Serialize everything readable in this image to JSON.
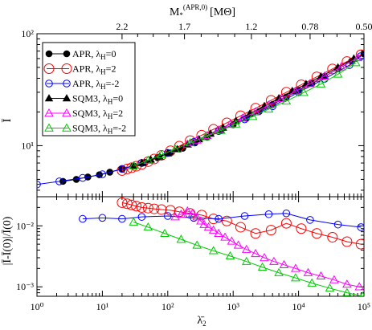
{
  "chart_data": [
    {
      "panel": "top",
      "type": "line",
      "scale": "log-log",
      "ylabel": "Ī",
      "xlim": [
        1,
        100000
      ],
      "ylim": [
        3.5,
        100
      ],
      "top_axis": {
        "label": "M*(APR,0) [MΘ]",
        "label_main": "M",
        "label_sub": "*",
        "label_sup": "(APR,0)",
        "label_unit": "[MΘ]",
        "tick_labels": [
          "2.2",
          "1.7",
          "1.2",
          "0.78",
          "0.50"
        ],
        "tick_x": [
          20,
          180,
          1900,
          15000,
          100000
        ]
      },
      "y_tick_labels": [
        "10¹",
        "10²"
      ],
      "y_ticks": [
        10,
        100
      ],
      "legend_position": "upper-left",
      "series": [
        {
          "name": "APR, λH=0",
          "label_main": "APR, λ",
          "label_sub": "H",
          "label_tail": "=0",
          "color": "#000000",
          "marker": "circle",
          "filled": true,
          "x": [
            2.5,
            4,
            6,
            9,
            13,
            20,
            30,
            45,
            70,
            110,
            170,
            260,
            400,
            650,
            1000,
            1600,
            2500,
            4000,
            6500,
            10000,
            16000,
            25000,
            40000,
            65000,
            100000
          ],
          "y": [
            4.8,
            5.0,
            5.25,
            5.5,
            5.8,
            6.2,
            6.6,
            7.1,
            7.8,
            8.6,
            9.5,
            10.6,
            11.9,
            13.6,
            15.4,
            17.6,
            20.2,
            23.3,
            27.2,
            31.2,
            36.0,
            41.5,
            48.5,
            57.0,
            66.0
          ]
        },
        {
          "name": "APR, λH=2",
          "label_main": "APR, λ",
          "label_sub": "H",
          "label_tail": "=2",
          "color": "#ff0000",
          "marker": "circle",
          "filled": false,
          "x": [
            20,
            24,
            28,
            33,
            40,
            50,
            62,
            80,
            110,
            150,
            220,
            330,
            500,
            800,
            1300,
            2200,
            3800,
            6500,
            11000,
            19000,
            33000,
            55000,
            90000
          ],
          "y": [
            6.0,
            6.2,
            6.35,
            6.55,
            6.8,
            7.2,
            7.6,
            8.2,
            9.0,
            9.9,
            11.1,
            12.4,
            14.0,
            16.0,
            18.5,
            21.6,
            25.4,
            30.0,
            35.0,
            41.2,
            48.5,
            56.5,
            65.0
          ]
        },
        {
          "name": "APR, λH=-2",
          "label_main": "APR, λ",
          "label_sub": "H",
          "label_tail": "=-2",
          "color": "#0000ff",
          "marker": "circle",
          "filled": false,
          "x": [
            1,
            2.2,
            5,
            10,
            20,
            40,
            100,
            250,
            600,
            1500,
            4000,
            10000,
            25000,
            60000,
            90000
          ],
          "y": [
            4.5,
            4.8,
            5.15,
            5.55,
            6.2,
            7.0,
            8.6,
            10.8,
            13.5,
            17.2,
            22.5,
            30.0,
            39.5,
            52.5,
            63.0
          ]
        },
        {
          "name": "SQM3, λH=0",
          "label_main": "SQM3, λ",
          "label_sub": "H",
          "label_tail": "=0",
          "color": "#000000",
          "marker": "triangle",
          "filled": true,
          "x": [
            30,
            40,
            55,
            75,
            100,
            140,
            200,
            300,
            450,
            700,
            1100,
            1800,
            3000,
            5000,
            8000,
            13000,
            22000,
            40000,
            70000
          ],
          "y": [
            6.6,
            7.0,
            7.5,
            8.0,
            8.6,
            9.3,
            10.2,
            11.4,
            12.8,
            14.5,
            16.6,
            19.3,
            22.6,
            26.5,
            30.8,
            35.5,
            41.5,
            50.0,
            60.0
          ]
        },
        {
          "name": "SQM3, λH=2",
          "label_main": "SQM3, λ",
          "label_sub": "H",
          "label_tail": "=2",
          "color": "#ff00ff",
          "marker": "triangle",
          "filled": false,
          "x": [
            200,
            280,
            400,
            600,
            900,
            1400,
            2200,
            3500,
            5500,
            9000,
            15000,
            25000,
            45000,
            80000
          ],
          "y": [
            10.3,
            11.2,
            12.3,
            13.8,
            15.5,
            17.6,
            20.0,
            23.0,
            26.4,
            30.6,
            35.8,
            41.8,
            50.5,
            61.0
          ]
        },
        {
          "name": "SQM3, λH=-2",
          "label_main": "SQM3, λ",
          "label_sub": "H",
          "label_tail": "=-2",
          "color": "#00cc00",
          "marker": "triangle",
          "filled": false,
          "x": [
            30,
            50,
            80,
            130,
            220,
            380,
            650,
            1100,
            2000,
            3500,
            6500,
            12000,
            22000,
            40000,
            75000
          ],
          "y": [
            6.6,
            7.4,
            8.3,
            9.3,
            10.6,
            12.0,
            13.7,
            15.6,
            18.2,
            21.2,
            25.0,
            29.8,
            35.5,
            43.5,
            55.0
          ]
        }
      ]
    },
    {
      "panel": "bottom",
      "type": "line",
      "scale": "log-log",
      "xlabel": "λ̄2",
      "xlabel_main": "λ̄",
      "xlabel_sub": "2",
      "ylabel": "|Ī-Ī(0)|/Ī(0)",
      "xlim": [
        1,
        100000
      ],
      "ylim": [
        0.0007,
        0.03
      ],
      "x_tick_labels": [
        "10⁰",
        "10¹",
        "10²",
        "10³",
        "10⁴",
        "10⁵"
      ],
      "x_ticks": [
        1,
        10,
        100,
        1000,
        10000,
        100000
      ],
      "y_tick_labels": [
        "10⁻³",
        "10⁻²"
      ],
      "y_ticks": [
        0.001,
        0.01
      ],
      "series": [
        {
          "name": "APR, λH=2",
          "color": "#ff0000",
          "marker": "circle",
          "filled": false,
          "x": [
            20,
            24,
            28,
            33,
            40,
            50,
            62,
            80,
            110,
            150,
            220,
            330,
            500,
            800,
            1300,
            2200,
            3800,
            6500,
            11000,
            19000,
            33000,
            55000,
            90000
          ],
          "y": [
            0.024,
            0.023,
            0.022,
            0.021,
            0.02,
            0.0195,
            0.019,
            0.0185,
            0.018,
            0.017,
            0.016,
            0.015,
            0.013,
            0.012,
            0.0095,
            0.0075,
            0.0085,
            0.011,
            0.009,
            0.0075,
            0.0065,
            0.0055,
            0.005
          ]
        },
        {
          "name": "APR, λH=-2",
          "color": "#0000ff",
          "marker": "circle",
          "filled": false,
          "x": [
            5,
            10,
            20,
            40,
            100,
            250,
            600,
            1500,
            3500,
            6500,
            15000,
            40000,
            90000
          ],
          "y": [
            0.013,
            0.0135,
            0.013,
            0.014,
            0.0145,
            0.0135,
            0.013,
            0.0145,
            0.0155,
            0.016,
            0.0125,
            0.0105,
            0.0095
          ]
        },
        {
          "name": "SQM3, λH=2",
          "color": "#ff00ff",
          "marker": "triangle",
          "filled": false,
          "x": [
            130,
            160,
            200,
            240,
            280,
            320,
            360,
            420,
            500,
            600,
            750,
            950,
            1200,
            1600,
            2200,
            3000,
            4200,
            6000,
            9000,
            14000,
            22000,
            35000,
            55000,
            85000
          ],
          "y": [
            0.014,
            0.0155,
            0.0175,
            0.016,
            0.014,
            0.012,
            0.0105,
            0.0095,
            0.0085,
            0.0075,
            0.0065,
            0.0056,
            0.0048,
            0.0041,
            0.0035,
            0.003,
            0.0026,
            0.0023,
            0.002,
            0.0017,
            0.0015,
            0.0013,
            0.0011,
            0.001
          ]
        },
        {
          "name": "SQM3, λH=-2",
          "color": "#00cc00",
          "marker": "triangle",
          "filled": false,
          "x": [
            30,
            50,
            90,
            160,
            280,
            500,
            900,
            1600,
            2800,
            5000,
            9000,
            16000,
            30000,
            55000,
            95000
          ],
          "y": [
            0.0115,
            0.0095,
            0.0075,
            0.006,
            0.0048,
            0.0039,
            0.0032,
            0.0026,
            0.0021,
            0.0017,
            0.0014,
            0.00115,
            0.00095,
            0.0008,
            0.0007
          ]
        }
      ]
    }
  ]
}
